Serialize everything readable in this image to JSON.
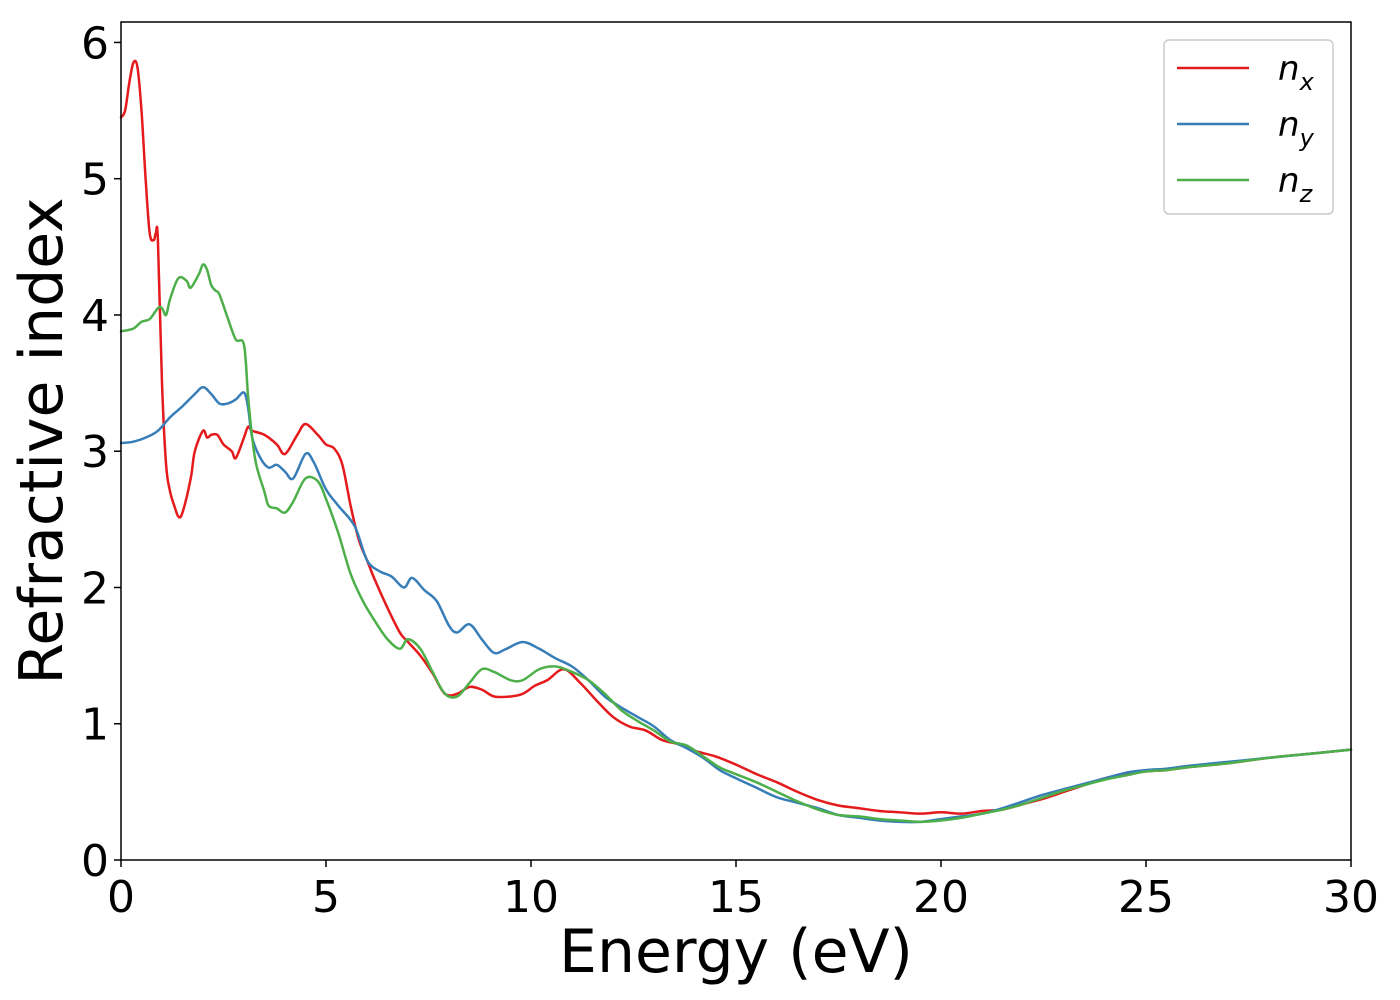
{
  "chart_data": {
    "type": "line",
    "title": "",
    "xlabel": "Energy (eV)",
    "ylabel": "Refractive index",
    "xlim": [
      0,
      30
    ],
    "ylim": [
      0,
      6.15
    ],
    "xticks": [
      0,
      5,
      10,
      15,
      20,
      25,
      30
    ],
    "yticks": [
      0,
      1,
      2,
      3,
      4,
      5,
      6
    ],
    "grid": false,
    "legend_position": "top-right",
    "series": [
      {
        "name": "n",
        "subscript": "x",
        "color": "#e41a1c",
        "points": [
          [
            0,
            5.45
          ],
          [
            0.1,
            5.5
          ],
          [
            0.2,
            5.7
          ],
          [
            0.3,
            5.85
          ],
          [
            0.4,
            5.82
          ],
          [
            0.5,
            5.5
          ],
          [
            0.6,
            5.0
          ],
          [
            0.7,
            4.6
          ],
          [
            0.8,
            4.55
          ],
          [
            0.85,
            4.6
          ],
          [
            0.9,
            4.55
          ],
          [
            1.0,
            3.5
          ],
          [
            1.1,
            2.9
          ],
          [
            1.2,
            2.7
          ],
          [
            1.3,
            2.6
          ],
          [
            1.4,
            2.52
          ],
          [
            1.5,
            2.55
          ],
          [
            1.7,
            2.8
          ],
          [
            1.8,
            3.0
          ],
          [
            2.0,
            3.15
          ],
          [
            2.1,
            3.1
          ],
          [
            2.2,
            3.12
          ],
          [
            2.35,
            3.12
          ],
          [
            2.5,
            3.05
          ],
          [
            2.7,
            3.0
          ],
          [
            2.8,
            2.95
          ],
          [
            3.0,
            3.1
          ],
          [
            3.1,
            3.18
          ],
          [
            3.2,
            3.15
          ],
          [
            3.5,
            3.12
          ],
          [
            3.8,
            3.05
          ],
          [
            4.0,
            2.98
          ],
          [
            4.3,
            3.12
          ],
          [
            4.5,
            3.2
          ],
          [
            4.8,
            3.12
          ],
          [
            5.0,
            3.05
          ],
          [
            5.2,
            3.02
          ],
          [
            5.4,
            2.9
          ],
          [
            5.6,
            2.6
          ],
          [
            5.8,
            2.35
          ],
          [
            6.0,
            2.2
          ],
          [
            6.2,
            2.05
          ],
          [
            6.5,
            1.85
          ],
          [
            6.8,
            1.67
          ],
          [
            7.0,
            1.6
          ],
          [
            7.3,
            1.5
          ],
          [
            7.6,
            1.37
          ],
          [
            7.9,
            1.22
          ],
          [
            8.2,
            1.22
          ],
          [
            8.5,
            1.27
          ],
          [
            8.8,
            1.25
          ],
          [
            9.1,
            1.2
          ],
          [
            9.5,
            1.2
          ],
          [
            9.8,
            1.22
          ],
          [
            10.1,
            1.28
          ],
          [
            10.4,
            1.32
          ],
          [
            10.8,
            1.4
          ],
          [
            11.2,
            1.3
          ],
          [
            11.6,
            1.17
          ],
          [
            12.0,
            1.05
          ],
          [
            12.4,
            0.98
          ],
          [
            12.8,
            0.95
          ],
          [
            13.2,
            0.88
          ],
          [
            13.6,
            0.85
          ],
          [
            14.0,
            0.8
          ],
          [
            14.5,
            0.76
          ],
          [
            15.0,
            0.7
          ],
          [
            15.5,
            0.63
          ],
          [
            16.0,
            0.57
          ],
          [
            16.5,
            0.5
          ],
          [
            17.0,
            0.44
          ],
          [
            17.5,
            0.4
          ],
          [
            18.0,
            0.38
          ],
          [
            18.5,
            0.36
          ],
          [
            19.0,
            0.35
          ],
          [
            19.5,
            0.34
          ],
          [
            20.0,
            0.35
          ],
          [
            20.5,
            0.34
          ],
          [
            21.0,
            0.36
          ],
          [
            21.5,
            0.37
          ],
          [
            22.0,
            0.41
          ],
          [
            22.5,
            0.45
          ],
          [
            23.0,
            0.5
          ],
          [
            23.5,
            0.55
          ],
          [
            24.0,
            0.6
          ],
          [
            24.5,
            0.63
          ],
          [
            25.0,
            0.65
          ],
          [
            25.5,
            0.66
          ],
          [
            26.0,
            0.68
          ],
          [
            27.0,
            0.71
          ],
          [
            28.0,
            0.75
          ],
          [
            29.0,
            0.78
          ],
          [
            30.0,
            0.81
          ]
        ]
      },
      {
        "name": "n",
        "subscript": "y",
        "color": "#377eb8",
        "points": [
          [
            0,
            3.06
          ],
          [
            0.3,
            3.07
          ],
          [
            0.6,
            3.1
          ],
          [
            0.9,
            3.15
          ],
          [
            1.2,
            3.25
          ],
          [
            1.5,
            3.33
          ],
          [
            1.8,
            3.42
          ],
          [
            2.0,
            3.47
          ],
          [
            2.2,
            3.42
          ],
          [
            2.4,
            3.35
          ],
          [
            2.6,
            3.35
          ],
          [
            2.8,
            3.38
          ],
          [
            3.0,
            3.43
          ],
          [
            3.1,
            3.32
          ],
          [
            3.2,
            3.1
          ],
          [
            3.4,
            2.95
          ],
          [
            3.6,
            2.88
          ],
          [
            3.8,
            2.9
          ],
          [
            4.0,
            2.85
          ],
          [
            4.2,
            2.8
          ],
          [
            4.5,
            2.98
          ],
          [
            4.7,
            2.92
          ],
          [
            5.0,
            2.72
          ],
          [
            5.3,
            2.6
          ],
          [
            5.7,
            2.45
          ],
          [
            6.0,
            2.2
          ],
          [
            6.3,
            2.12
          ],
          [
            6.6,
            2.08
          ],
          [
            6.9,
            2.0
          ],
          [
            7.1,
            2.07
          ],
          [
            7.4,
            1.98
          ],
          [
            7.7,
            1.9
          ],
          [
            8.0,
            1.72
          ],
          [
            8.2,
            1.67
          ],
          [
            8.5,
            1.73
          ],
          [
            8.8,
            1.62
          ],
          [
            9.1,
            1.52
          ],
          [
            9.4,
            1.55
          ],
          [
            9.8,
            1.6
          ],
          [
            10.2,
            1.55
          ],
          [
            10.6,
            1.48
          ],
          [
            11.0,
            1.42
          ],
          [
            11.4,
            1.32
          ],
          [
            11.8,
            1.2
          ],
          [
            12.2,
            1.12
          ],
          [
            12.6,
            1.05
          ],
          [
            13.0,
            0.98
          ],
          [
            13.4,
            0.88
          ],
          [
            13.8,
            0.82
          ],
          [
            14.2,
            0.75
          ],
          [
            14.6,
            0.66
          ],
          [
            15.0,
            0.6
          ],
          [
            15.5,
            0.53
          ],
          [
            16.0,
            0.46
          ],
          [
            16.5,
            0.42
          ],
          [
            17.0,
            0.38
          ],
          [
            17.5,
            0.33
          ],
          [
            18.0,
            0.31
          ],
          [
            18.5,
            0.29
          ],
          [
            19.0,
            0.28
          ],
          [
            19.5,
            0.28
          ],
          [
            20.0,
            0.3
          ],
          [
            20.5,
            0.32
          ],
          [
            21.0,
            0.34
          ],
          [
            21.5,
            0.38
          ],
          [
            22.0,
            0.43
          ],
          [
            22.5,
            0.48
          ],
          [
            23.0,
            0.52
          ],
          [
            23.5,
            0.56
          ],
          [
            24.0,
            0.6
          ],
          [
            24.5,
            0.64
          ],
          [
            25.0,
            0.66
          ],
          [
            25.5,
            0.67
          ],
          [
            26.0,
            0.69
          ],
          [
            27.0,
            0.72
          ],
          [
            28.0,
            0.75
          ],
          [
            29.0,
            0.78
          ],
          [
            30.0,
            0.81
          ]
        ]
      },
      {
        "name": "n",
        "subscript": "z",
        "color": "#4daf4a",
        "points": [
          [
            0,
            3.88
          ],
          [
            0.3,
            3.9
          ],
          [
            0.5,
            3.95
          ],
          [
            0.7,
            3.97
          ],
          [
            0.9,
            4.05
          ],
          [
            1.0,
            4.05
          ],
          [
            1.1,
            4.0
          ],
          [
            1.2,
            4.12
          ],
          [
            1.4,
            4.27
          ],
          [
            1.6,
            4.25
          ],
          [
            1.7,
            4.2
          ],
          [
            1.9,
            4.3
          ],
          [
            2.0,
            4.37
          ],
          [
            2.1,
            4.33
          ],
          [
            2.2,
            4.22
          ],
          [
            2.3,
            4.18
          ],
          [
            2.4,
            4.15
          ],
          [
            2.6,
            3.98
          ],
          [
            2.8,
            3.82
          ],
          [
            3.0,
            3.78
          ],
          [
            3.1,
            3.4
          ],
          [
            3.2,
            3.1
          ],
          [
            3.3,
            2.9
          ],
          [
            3.5,
            2.7
          ],
          [
            3.6,
            2.6
          ],
          [
            3.8,
            2.58
          ],
          [
            4.0,
            2.55
          ],
          [
            4.2,
            2.63
          ],
          [
            4.5,
            2.8
          ],
          [
            4.8,
            2.78
          ],
          [
            5.0,
            2.65
          ],
          [
            5.3,
            2.4
          ],
          [
            5.6,
            2.1
          ],
          [
            5.9,
            1.9
          ],
          [
            6.2,
            1.75
          ],
          [
            6.5,
            1.62
          ],
          [
            6.8,
            1.55
          ],
          [
            7.0,
            1.62
          ],
          [
            7.3,
            1.55
          ],
          [
            7.6,
            1.38
          ],
          [
            7.9,
            1.22
          ],
          [
            8.2,
            1.2
          ],
          [
            8.5,
            1.3
          ],
          [
            8.8,
            1.4
          ],
          [
            9.1,
            1.38
          ],
          [
            9.5,
            1.32
          ],
          [
            9.8,
            1.32
          ],
          [
            10.2,
            1.4
          ],
          [
            10.6,
            1.42
          ],
          [
            11.0,
            1.38
          ],
          [
            11.4,
            1.32
          ],
          [
            11.8,
            1.22
          ],
          [
            12.2,
            1.1
          ],
          [
            12.6,
            1.02
          ],
          [
            13.0,
            0.95
          ],
          [
            13.4,
            0.87
          ],
          [
            13.8,
            0.84
          ],
          [
            14.2,
            0.76
          ],
          [
            14.6,
            0.68
          ],
          [
            15.0,
            0.63
          ],
          [
            15.5,
            0.57
          ],
          [
            16.0,
            0.5
          ],
          [
            16.5,
            0.43
          ],
          [
            17.0,
            0.37
          ],
          [
            17.5,
            0.33
          ],
          [
            18.0,
            0.32
          ],
          [
            18.5,
            0.3
          ],
          [
            19.0,
            0.29
          ],
          [
            19.5,
            0.28
          ],
          [
            20.0,
            0.29
          ],
          [
            20.5,
            0.31
          ],
          [
            21.0,
            0.34
          ],
          [
            21.5,
            0.37
          ],
          [
            22.0,
            0.41
          ],
          [
            22.5,
            0.46
          ],
          [
            23.0,
            0.51
          ],
          [
            23.5,
            0.55
          ],
          [
            24.0,
            0.59
          ],
          [
            24.5,
            0.62
          ],
          [
            25.0,
            0.65
          ],
          [
            25.5,
            0.66
          ],
          [
            26.0,
            0.68
          ],
          [
            27.0,
            0.71
          ],
          [
            28.0,
            0.75
          ],
          [
            29.0,
            0.78
          ],
          [
            30.0,
            0.81
          ]
        ]
      }
    ]
  }
}
